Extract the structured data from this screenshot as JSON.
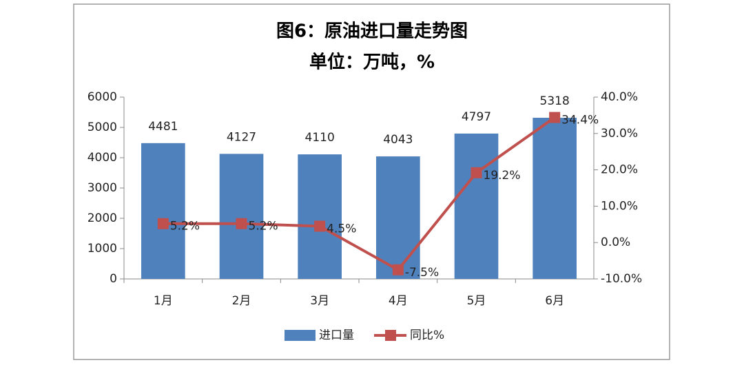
{
  "chart_data": {
    "type": "combo",
    "title": "图6：原油进口量走势图",
    "subtitle": "单位：万吨，%",
    "categories": [
      "1月",
      "2月",
      "3月",
      "4月",
      "5月",
      "6月"
    ],
    "series": [
      {
        "name": "进口量",
        "type": "bar",
        "color": "#4f81bd",
        "values": [
          4481,
          4127,
          4110,
          4043,
          4797,
          5318
        ]
      },
      {
        "name": "同比%",
        "type": "line",
        "color": "#c0504d",
        "axis": "y2",
        "values": [
          5.2,
          5.2,
          4.5,
          -7.5,
          19.2,
          34.4
        ],
        "value_labels": [
          "5.2%",
          "5.2%",
          "4.5%",
          "-7.5%",
          "19.2%",
          "34.4%"
        ]
      }
    ],
    "ylim": [
      0,
      6000
    ],
    "yticks": [
      0,
      1000,
      2000,
      3000,
      4000,
      5000,
      6000
    ],
    "y2lim": [
      -10,
      40
    ],
    "y2ticks": [
      {
        "value": -10,
        "label": "-10.0%"
      },
      {
        "value": 0,
        "label": "0.0%"
      },
      {
        "value": 10,
        "label": "10.0%"
      },
      {
        "value": 20,
        "label": "20.0%"
      },
      {
        "value": 30,
        "label": "30.0%"
      },
      {
        "value": 40,
        "label": "40.0%"
      }
    ],
    "legend": "bottom"
  }
}
